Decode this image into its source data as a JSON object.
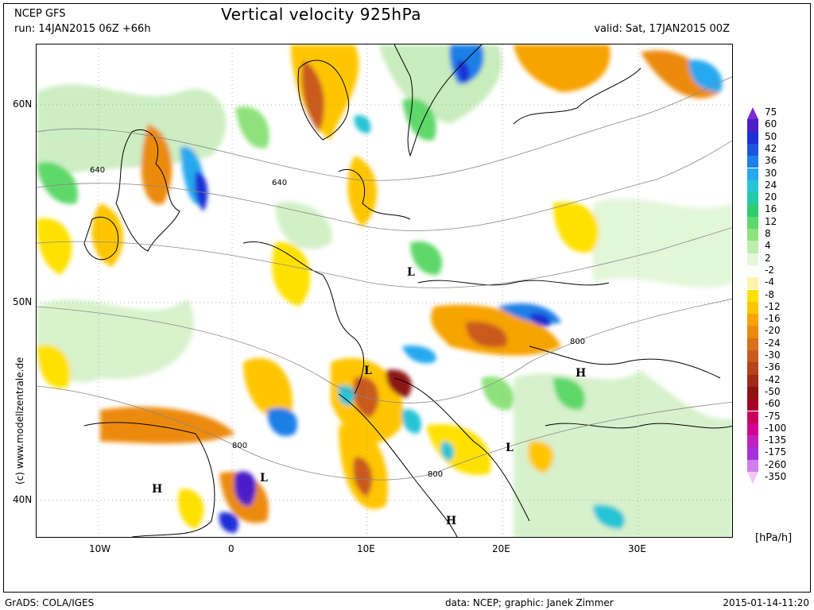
{
  "header": {
    "model": "NCEP GFS",
    "run": "run: 14JAN2015 06Z +66h",
    "title": "Vertical velocity 925hPa",
    "valid": "valid: Sat, 17JAN2015 00Z"
  },
  "axes": {
    "lat_labels": [
      "60N",
      "50N",
      "40N"
    ],
    "lon_labels": [
      "10W",
      "0",
      "10E",
      "20E",
      "30E"
    ]
  },
  "map": {
    "contour_labels": [
      "640",
      "640",
      "800",
      "800",
      "800"
    ],
    "pressure_centers": [
      "L",
      "L",
      "L",
      "L",
      "H",
      "H",
      "H"
    ]
  },
  "legend": {
    "unit": "[hPa/h]",
    "levels": [
      {
        "label": "75",
        "color": "#7d2bd8"
      },
      {
        "label": "60",
        "color": "#4b1fc8"
      },
      {
        "label": "50",
        "color": "#1e2fd6"
      },
      {
        "label": "42",
        "color": "#1d55e0"
      },
      {
        "label": "36",
        "color": "#1e7fe6"
      },
      {
        "label": "30",
        "color": "#27a8ee"
      },
      {
        "label": "24",
        "color": "#27c4d6"
      },
      {
        "label": "20",
        "color": "#24c9a8"
      },
      {
        "label": "16",
        "color": "#2ecc6e"
      },
      {
        "label": "12",
        "color": "#5ed86a"
      },
      {
        "label": "8",
        "color": "#8ee27c"
      },
      {
        "label": "4",
        "color": "#bdeeb0"
      },
      {
        "label": "2",
        "color": "#e4f7dc"
      },
      {
        "label": "-2",
        "color": "#ffffff"
      },
      {
        "label": "-4",
        "color": "#fff3a8"
      },
      {
        "label": "-8",
        "color": "#ffe100"
      },
      {
        "label": "-12",
        "color": "#ffc600"
      },
      {
        "label": "-16",
        "color": "#f7a300"
      },
      {
        "label": "-20",
        "color": "#ec8a10"
      },
      {
        "label": "-24",
        "color": "#d9701c"
      },
      {
        "label": "-30",
        "color": "#c95a1e"
      },
      {
        "label": "-36",
        "color": "#b5421c"
      },
      {
        "label": "-42",
        "color": "#a02a1a"
      },
      {
        "label": "-50",
        "color": "#8c1212"
      },
      {
        "label": "-60",
        "color": "#a6002a"
      },
      {
        "label": "-75",
        "color": "#c8005a"
      },
      {
        "label": "-100",
        "color": "#d00090"
      },
      {
        "label": "-135",
        "color": "#c020c0"
      },
      {
        "label": "-175",
        "color": "#a830d8"
      },
      {
        "label": "-260",
        "color": "#d080ec"
      },
      {
        "label": "-350",
        "color": "#f0c8f8"
      }
    ]
  },
  "footer": {
    "left": "GrADS: COLA/IGES",
    "middle": "data: NCEP; graphic: Janek Zimmer",
    "right": "2015-01-14-11:20",
    "credit": "(c)  www.modellzentrale.de"
  }
}
